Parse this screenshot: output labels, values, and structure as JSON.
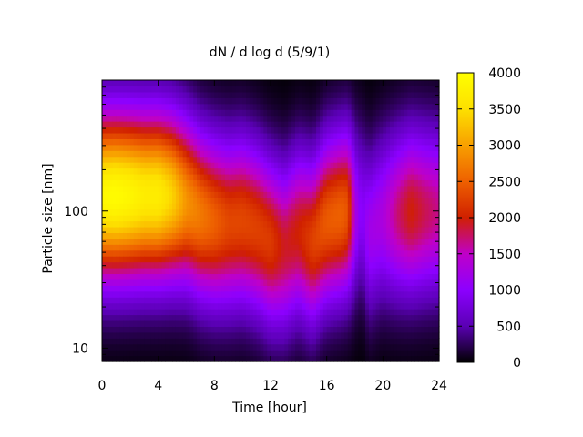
{
  "chart_data": {
    "type": "heatmap",
    "title": "dN / d log d (5/9/1)",
    "xlabel": "Time [hour]",
    "ylabel": "Particle size [nm]",
    "xlim": [
      0,
      24
    ],
    "x_ticks": [
      0,
      4,
      8,
      12,
      16,
      20,
      24
    ],
    "y_scale": "log",
    "ylim": [
      8,
      900
    ],
    "y_ticks": [
      10,
      100
    ],
    "colorbar": {
      "range": [
        0,
        4000
      ],
      "ticks": [
        0,
        500,
        1000,
        1500,
        2000,
        2500,
        3000,
        3500,
        4000
      ],
      "colors": [
        "#000000",
        "#5a00b4",
        "#8c00ff",
        "#bf00c8",
        "#d02000",
        "#ee6000",
        "#f8a000",
        "#fde000",
        "#ffff00"
      ]
    },
    "grid": false,
    "time_profile": {
      "time_hours": [
        0,
        1,
        2,
        3,
        4,
        5,
        6,
        7,
        8,
        9,
        10,
        11,
        12,
        13,
        14,
        15,
        16,
        17,
        17.5,
        18,
        18.5,
        19,
        20,
        21,
        22,
        23,
        24
      ],
      "peak_diameter_nm": [
        130,
        130,
        130,
        130,
        130,
        128,
        118,
        95,
        85,
        82,
        85,
        75,
        60,
        55,
        70,
        60,
        85,
        95,
        100,
        100,
        100,
        70,
        90,
        95,
        100,
        100,
        100
      ],
      "peak_concentration": [
        3900,
        3950,
        3850,
        3700,
        3700,
        3400,
        2900,
        2700,
        2500,
        2300,
        2300,
        2250,
        2200,
        1900,
        2000,
        2250,
        2450,
        2500,
        2400,
        1300,
        900,
        1200,
        1300,
        1700,
        2000,
        1800,
        1650
      ]
    }
  }
}
